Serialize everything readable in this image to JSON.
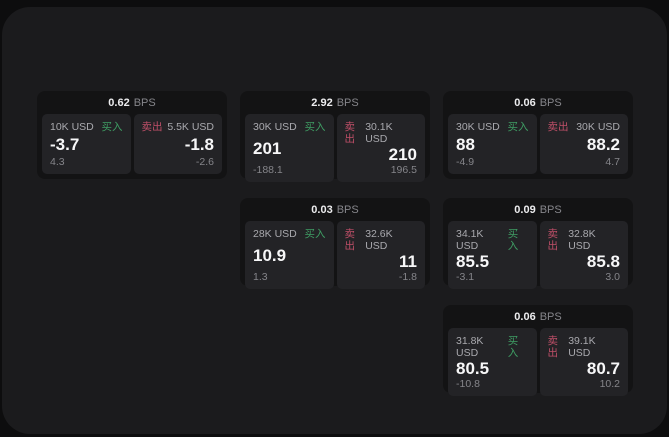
{
  "labels": {
    "bps": "BPS",
    "buy": "买入",
    "sell": "卖出"
  },
  "colors": {
    "background": "#0d0d0e",
    "panel": "#1b1b1d",
    "card": "#131314",
    "tile": "#232326",
    "buy_accent": "#3f9e64",
    "sell_accent": "#bf4f68"
  },
  "cards": [
    {
      "bps": "0.62",
      "buy": {
        "amount": "10K USD",
        "value": "-3.7",
        "sub": "4.3"
      },
      "sell": {
        "amount": "5.5K USD",
        "value": "-1.8",
        "sub": "-2.6"
      }
    },
    {
      "bps": "2.92",
      "buy": {
        "amount": "30K USD",
        "value": "201",
        "sub": "-188.1"
      },
      "sell": {
        "amount": "30.1K USD",
        "value": "210",
        "sub": "196.5"
      }
    },
    {
      "bps": "0.06",
      "buy": {
        "amount": "30K USD",
        "value": "88",
        "sub": "-4.9"
      },
      "sell": {
        "amount": "30K USD",
        "value": "88.2",
        "sub": "4.7"
      }
    },
    {
      "bps": "0.03",
      "buy": {
        "amount": "28K USD",
        "value": "10.9",
        "sub": "1.3"
      },
      "sell": {
        "amount": "32.6K USD",
        "value": "11",
        "sub": "-1.8"
      }
    },
    {
      "bps": "0.09",
      "buy": {
        "amount": "34.1K USD",
        "value": "85.5",
        "sub": "-3.1"
      },
      "sell": {
        "amount": "32.8K USD",
        "value": "85.8",
        "sub": "3.0"
      }
    },
    {
      "bps": "0.06",
      "buy": {
        "amount": "31.8K USD",
        "value": "80.5",
        "sub": "-10.8"
      },
      "sell": {
        "amount": "39.1K USD",
        "value": "80.7",
        "sub": "10.2"
      }
    }
  ]
}
